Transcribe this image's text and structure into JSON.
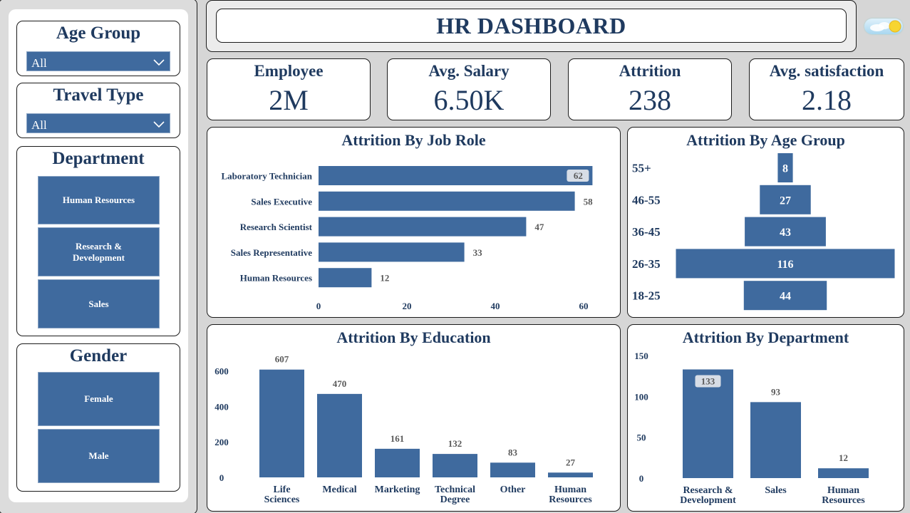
{
  "header": {
    "title": "HR DASHBOARD"
  },
  "slicers": {
    "age_group": {
      "title": "Age Group",
      "value": "All"
    },
    "travel_type": {
      "title": "Travel Type",
      "value": "All"
    },
    "department": {
      "title": "Department",
      "options": [
        "Human Resources",
        "Research &\nDevelopment",
        "Sales"
      ]
    },
    "gender": {
      "title": "Gender",
      "options": [
        "Female",
        "Male"
      ]
    }
  },
  "kpis": [
    {
      "label": "Employee",
      "value": "2M"
    },
    {
      "label": "Avg. Salary",
      "value": "6.50K"
    },
    {
      "label": "Attrition",
      "value": "238"
    },
    {
      "label": "Avg. satisfaction",
      "value": "2.18"
    }
  ],
  "colors": {
    "bar": "#3f6a9e",
    "text": "#1f3a5f",
    "label": "#595959"
  },
  "chart_data": [
    {
      "id": "job_role",
      "type": "bar",
      "orientation": "horizontal",
      "title": "Attrition By Job Role",
      "categories": [
        "Laboratory Technician",
        "Sales Executive",
        "Research Scientist",
        "Sales Representative",
        "Human Resources"
      ],
      "values": [
        62,
        58,
        47,
        33,
        12
      ],
      "xticks": [
        0,
        20,
        40,
        60
      ],
      "xlim": [
        0,
        60
      ]
    },
    {
      "id": "age_group",
      "type": "bar",
      "orientation": "funnel",
      "title": "Attrition By Age Group",
      "categories": [
        "55+",
        "46-55",
        "36-45",
        "26-35",
        "18-25"
      ],
      "values": [
        8,
        27,
        43,
        116,
        44
      ]
    },
    {
      "id": "education",
      "type": "bar",
      "title": "Attrition By Education",
      "categories": [
        "Life\nSciences",
        "Medical",
        "Marketing",
        "Technical\nDegree",
        "Other",
        "Human\nResources"
      ],
      "values": [
        607,
        470,
        161,
        132,
        83,
        27
      ],
      "yticks": [
        0,
        200,
        400,
        600
      ],
      "ylim": [
        0,
        650
      ]
    },
    {
      "id": "department",
      "type": "bar",
      "title": "Attrition By Department",
      "categories": [
        "Research &\nDevelopment",
        "Sales",
        "Human\nResources"
      ],
      "values": [
        133,
        93,
        12
      ],
      "yticks": [
        0,
        50,
        100,
        150
      ],
      "ylim": [
        0,
        150
      ]
    }
  ]
}
